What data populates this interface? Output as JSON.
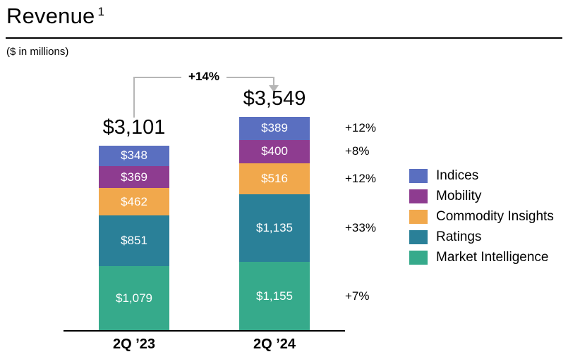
{
  "header": {
    "title": "Revenue",
    "footnote_marker": "1",
    "subtitle": "($ in millions)"
  },
  "chart_data": {
    "type": "bar",
    "stacked": true,
    "unit": "USD millions",
    "title": "Revenue",
    "categories": [
      "2Q ’23",
      "2Q ’24"
    ],
    "totals": {
      "values": [
        3101,
        3549
      ],
      "labels": [
        "$3,101",
        "$3,549"
      ]
    },
    "total_change": "+14%",
    "series": [
      {
        "name": "Indices",
        "color": "#5a6fc0",
        "values": [
          348,
          389
        ],
        "labels": [
          "$348",
          "$389"
        ],
        "yoy_change": "+12%"
      },
      {
        "name": "Mobility",
        "color": "#8e3c90",
        "values": [
          369,
          400
        ],
        "labels": [
          "$369",
          "$400"
        ],
        "yoy_change": "+8%"
      },
      {
        "name": "Commodity Insights",
        "color": "#f1a84c",
        "values": [
          462,
          516
        ],
        "labels": [
          "$462",
          "$516"
        ],
        "yoy_change": "+12%"
      },
      {
        "name": "Ratings",
        "color": "#2a8098",
        "values": [
          851,
          1135
        ],
        "labels": [
          "$851",
          "$1,135"
        ],
        "yoy_change": "+33%"
      },
      {
        "name": "Market Intelligence",
        "color": "#36aa8b",
        "values": [
          1079,
          1155
        ],
        "labels": [
          "$1,079",
          "$1,155"
        ],
        "yoy_change": "+7%"
      }
    ],
    "legend": [
      "Indices",
      "Mobility",
      "Commodity Insights",
      "Ratings",
      "Market Intelligence"
    ],
    "layout": {
      "legend_position": "right",
      "gridlines": false,
      "y_axis_visible": false,
      "segment_order_top_to_bottom": [
        "Indices",
        "Mobility",
        "Commodity Insights",
        "Ratings",
        "Market Intelligence"
      ]
    },
    "colors": {
      "arrow": "#b6b6b6",
      "axis": "#000000",
      "segment_value_text": "#ffffff",
      "text": "#000000"
    }
  }
}
